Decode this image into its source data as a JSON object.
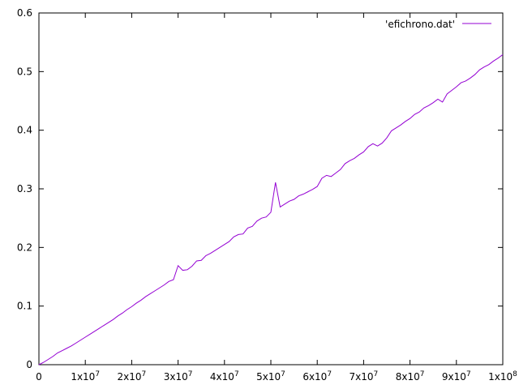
{
  "chart_data": {
    "type": "line",
    "title": "",
    "xlabel": "",
    "ylabel": "",
    "xlim": [
      0,
      100000000
    ],
    "ylim": [
      0,
      0.6
    ],
    "x_ticks": [
      {
        "value": 0,
        "mantissa": "0",
        "exp": ""
      },
      {
        "value": 10000000,
        "mantissa": "1x10",
        "exp": "7"
      },
      {
        "value": 20000000,
        "mantissa": "2x10",
        "exp": "7"
      },
      {
        "value": 30000000,
        "mantissa": "3x10",
        "exp": "7"
      },
      {
        "value": 40000000,
        "mantissa": "4x10",
        "exp": "7"
      },
      {
        "value": 50000000,
        "mantissa": "5x10",
        "exp": "7"
      },
      {
        "value": 60000000,
        "mantissa": "6x10",
        "exp": "7"
      },
      {
        "value": 70000000,
        "mantissa": "7x10",
        "exp": "7"
      },
      {
        "value": 80000000,
        "mantissa": "8x10",
        "exp": "7"
      },
      {
        "value": 90000000,
        "mantissa": "9x10",
        "exp": "7"
      },
      {
        "value": 100000000,
        "mantissa": "1x10",
        "exp": "8"
      }
    ],
    "y_ticks": [
      {
        "value": 0,
        "label": "0"
      },
      {
        "value": 0.1,
        "label": "0.1"
      },
      {
        "value": 0.2,
        "label": "0.2"
      },
      {
        "value": 0.3,
        "label": "0.3"
      },
      {
        "value": 0.4,
        "label": "0.4"
      },
      {
        "value": 0.5,
        "label": "0.5"
      },
      {
        "value": 0.6,
        "label": "0.6"
      }
    ],
    "grid": false,
    "legend_position": "top-right",
    "series": [
      {
        "name": "'efichrono.dat'",
        "color": "#9400d3",
        "x": [
          0,
          1000000,
          2000000,
          3000000,
          4000000,
          5000000,
          6000000,
          7000000,
          8000000,
          9000000,
          10000000,
          11000000,
          12000000,
          13000000,
          14000000,
          15000000,
          16000000,
          17000000,
          18000000,
          19000000,
          20000000,
          21000000,
          22000000,
          23000000,
          24000000,
          25000000,
          26000000,
          27000000,
          28000000,
          29000000,
          30000000,
          31000000,
          32000000,
          33000000,
          34000000,
          35000000,
          36000000,
          37000000,
          38000000,
          39000000,
          40000000,
          41000000,
          42000000,
          43000000,
          44000000,
          45000000,
          46000000,
          47000000,
          48000000,
          49000000,
          50000000,
          51000000,
          52000000,
          53000000,
          54000000,
          55000000,
          56000000,
          57000000,
          58000000,
          59000000,
          60000000,
          61000000,
          62000000,
          63000000,
          64000000,
          65000000,
          66000000,
          67000000,
          68000000,
          69000000,
          70000000,
          71000000,
          72000000,
          73000000,
          74000000,
          75000000,
          76000000,
          77000000,
          78000000,
          79000000,
          80000000,
          81000000,
          82000000,
          83000000,
          84000000,
          85000000,
          86000000,
          87000000,
          88000000,
          89000000,
          90000000,
          91000000,
          92000000,
          93000000,
          94000000,
          95000000,
          96000000,
          97000000,
          98000000,
          99000000,
          100000000
        ],
        "y": [
          0.0,
          0.004,
          0.009,
          0.014,
          0.02,
          0.024,
          0.028,
          0.032,
          0.037,
          0.042,
          0.047,
          0.052,
          0.057,
          0.062,
          0.067,
          0.072,
          0.077,
          0.083,
          0.088,
          0.094,
          0.099,
          0.105,
          0.11,
          0.116,
          0.121,
          0.126,
          0.131,
          0.136,
          0.142,
          0.145,
          0.169,
          0.161,
          0.162,
          0.168,
          0.177,
          0.178,
          0.186,
          0.19,
          0.195,
          0.2,
          0.205,
          0.21,
          0.218,
          0.222,
          0.223,
          0.233,
          0.236,
          0.245,
          0.25,
          0.252,
          0.26,
          0.311,
          0.269,
          0.274,
          0.279,
          0.282,
          0.288,
          0.291,
          0.295,
          0.299,
          0.304,
          0.318,
          0.323,
          0.321,
          0.327,
          0.333,
          0.343,
          0.348,
          0.352,
          0.358,
          0.363,
          0.372,
          0.377,
          0.373,
          0.378,
          0.387,
          0.399,
          0.404,
          0.409,
          0.415,
          0.42,
          0.427,
          0.431,
          0.438,
          0.442,
          0.447,
          0.453,
          0.448,
          0.462,
          0.468,
          0.474,
          0.481,
          0.484,
          0.489,
          0.495,
          0.503,
          0.508,
          0.512,
          0.518,
          0.523,
          0.529
        ]
      }
    ]
  }
}
